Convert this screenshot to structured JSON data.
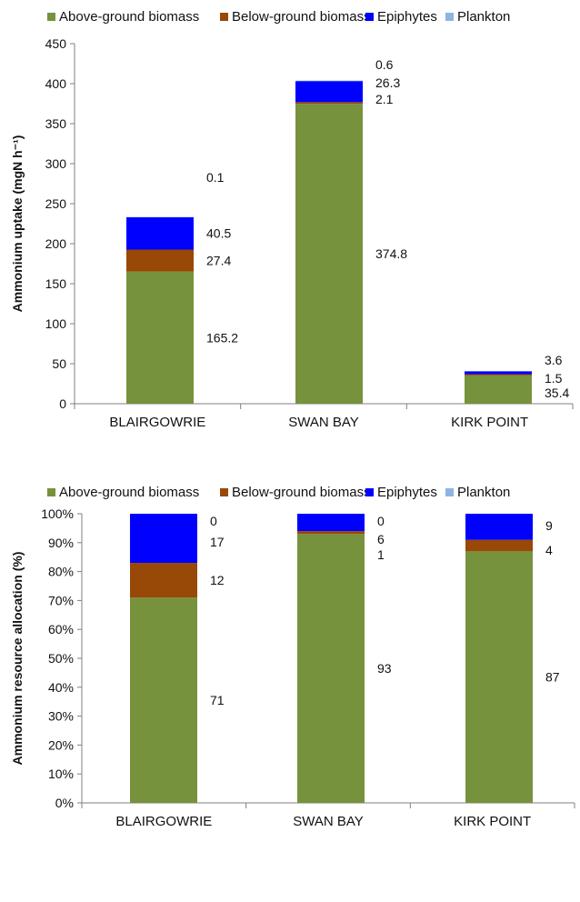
{
  "legend": [
    {
      "name": "Above-ground biomass",
      "color": "#76923c"
    },
    {
      "name": "Below-ground biomass",
      "color": "#984807"
    },
    {
      "name": "Epiphytes",
      "color": "#0000ff"
    },
    {
      "name": "Plankton",
      "color": "#8eb4e3"
    }
  ],
  "chart_data": [
    {
      "type": "bar",
      "stacked": true,
      "categories": [
        "BLAIRGOWRIE",
        "SWAN BAY",
        "KIRK POINT"
      ],
      "ylabel": "Ammonium  uptake  (mgN h⁻¹)",
      "ylim": [
        0,
        450
      ],
      "yticks": [
        0,
        50,
        100,
        150,
        200,
        250,
        300,
        350,
        400,
        450
      ],
      "ytick_labels": [
        "0",
        "50",
        "100",
        "150",
        "200",
        "250",
        "300",
        "350",
        "400",
        "450"
      ],
      "grid": false,
      "legend_position": "top",
      "series": [
        {
          "name": "Above-ground biomass",
          "values": [
            165.2,
            374.8,
            35.4
          ],
          "labels": [
            "165.2",
            "374.8",
            "35.4"
          ]
        },
        {
          "name": "Below-ground biomass",
          "values": [
            27.4,
            2.1,
            1.5
          ],
          "labels": [
            "27.4",
            "2.1",
            "1.5"
          ]
        },
        {
          "name": "Epiphytes",
          "values": [
            40.5,
            26.3,
            3.6
          ],
          "labels": [
            "40.5",
            "26.3",
            "3.6"
          ]
        },
        {
          "name": "Plankton",
          "values": [
            0.1,
            0.6,
            0
          ],
          "labels": [
            "0.1",
            "0.6",
            ""
          ]
        }
      ]
    },
    {
      "type": "bar",
      "stacked": true,
      "percent": true,
      "categories": [
        "BLAIRGOWRIE",
        "SWAN BAY",
        "KIRK POINT"
      ],
      "ylabel": "Ammonium  resource  allocation  (%)",
      "ylim": [
        0,
        100
      ],
      "yticks": [
        0,
        10,
        20,
        30,
        40,
        50,
        60,
        70,
        80,
        90,
        100
      ],
      "ytick_labels": [
        "0%",
        "10%",
        "20%",
        "30%",
        "40%",
        "50%",
        "60%",
        "70%",
        "80%",
        "90%",
        "100%"
      ],
      "grid": false,
      "legend_position": "top",
      "series": [
        {
          "name": "Above-ground biomass",
          "values": [
            71,
            93,
            87
          ],
          "labels": [
            "71",
            "93",
            "87"
          ]
        },
        {
          "name": "Below-ground biomass",
          "values": [
            12,
            1,
            4
          ],
          "labels": [
            "12",
            "1",
            "4"
          ]
        },
        {
          "name": "Epiphytes",
          "values": [
            17,
            6,
            9
          ],
          "labels": [
            "17",
            "6",
            "9"
          ]
        },
        {
          "name": "Plankton",
          "values": [
            0,
            0,
            0
          ],
          "labels": [
            "0",
            "0",
            ""
          ]
        }
      ]
    }
  ]
}
